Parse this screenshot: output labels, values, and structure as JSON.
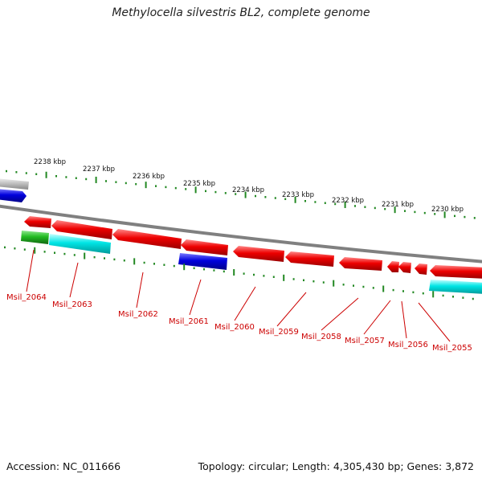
{
  "title": "Methylocella silvestris BL2, complete genome",
  "footer": {
    "accession": "Accession: NC_011666",
    "summary": "Topology: circular; Length: 4,305,430 bp; Genes: 3,872"
  },
  "colors": {
    "forward_gene": "#ee0000",
    "reverse_gene_blue": "#0000dd",
    "reverse_gene_cyan": "#00e5e5",
    "reverse_gene_green": "#22bb22",
    "backbone": "#808080",
    "tick": "#228822",
    "label": "#cc0000"
  },
  "kbp_ticks": [
    "2238 kbp",
    "2237 kbp",
    "2236 kbp",
    "2235 kbp",
    "2234 kbp",
    "2233 kbp",
    "2232 kbp",
    "2231 kbp",
    "2230 kbp"
  ],
  "genes": [
    {
      "label": "Msil_2064"
    },
    {
      "label": "Msil_2063"
    },
    {
      "label": "Msil_2062"
    },
    {
      "label": "Msil_2061"
    },
    {
      "label": "Msil_2060"
    },
    {
      "label": "Msil_2059"
    },
    {
      "label": "Msil_2058"
    },
    {
      "label": "Msil_2057"
    },
    {
      "label": "Msil_2056"
    },
    {
      "label": "Msil_2055"
    }
  ]
}
